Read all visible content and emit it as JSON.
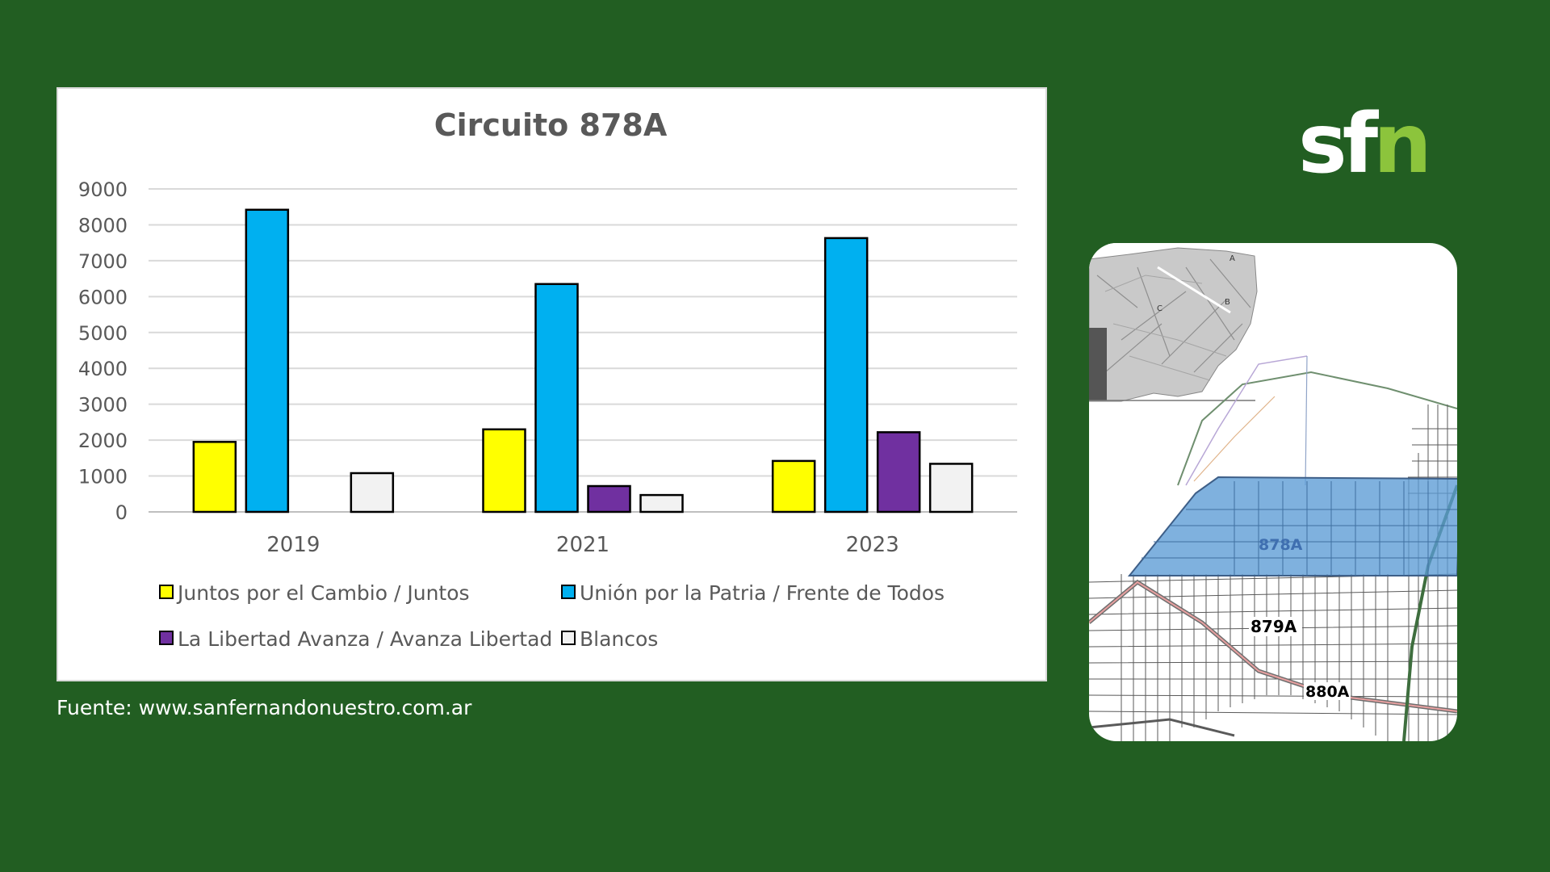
{
  "chart_data": {
    "type": "bar",
    "title": "Circuito 878A",
    "categories": [
      "2019",
      "2021",
      "2023"
    ],
    "ylim": [
      0,
      9000
    ],
    "yticks": [
      0,
      1000,
      2000,
      3000,
      4000,
      5000,
      6000,
      7000,
      8000,
      9000
    ],
    "grid": true,
    "legend_position": "bottom",
    "series": [
      {
        "name": "Juntos por el Cambio / Juntos",
        "color": "#ffff00",
        "values": [
          1950,
          2300,
          1420
        ]
      },
      {
        "name": "Unión por la Patria / Frente de Todos",
        "color": "#00b0f0",
        "values": [
          8420,
          6350,
          7630
        ]
      },
      {
        "name": "La Libertad Avanza / Avanza Libertad",
        "color": "#7030a0",
        "values": [
          null,
          720,
          2220
        ]
      },
      {
        "name": "Blancos",
        "color": "#f2f2f2",
        "values": [
          1080,
          470,
          1340
        ]
      }
    ]
  },
  "source": "Fuente: www.sanfernandonuestro.com.ar",
  "logo": {
    "part1": "sf",
    "part2": "n"
  },
  "map": {
    "labels": [
      "878A",
      "879A",
      "880A"
    ],
    "inset_labels": [
      "A",
      "B",
      "C"
    ],
    "highlight_color": "#5b9bd5"
  }
}
